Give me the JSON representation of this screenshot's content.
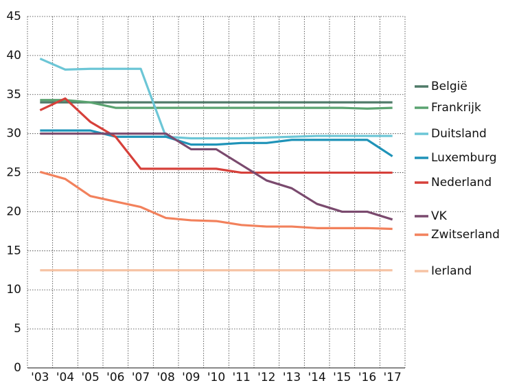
{
  "chart_data": {
    "type": "line",
    "categories": [
      "'03",
      "'04",
      "'05",
      "'06",
      "'07",
      "'08",
      "'09",
      "'10",
      "'11",
      "'12",
      "'13",
      "'14",
      "'15",
      "'16",
      "'17"
    ],
    "series": [
      {
        "name": "België",
        "color": "#4f7a68",
        "values": [
          34,
          34,
          34,
          34,
          34,
          34,
          34,
          34,
          34,
          34,
          34,
          34,
          34,
          34,
          34
        ]
      },
      {
        "name": "Frankrijk",
        "color": "#5aa370",
        "values": [
          34.3,
          34.3,
          34,
          33.3,
          33.3,
          33.3,
          33.3,
          33.3,
          33.3,
          33.3,
          33.3,
          33.3,
          33.3,
          33.2,
          33.3
        ]
      },
      {
        "name": "Duitsland",
        "color": "#6cc6d6",
        "values": [
          39.6,
          38.2,
          38.3,
          38.3,
          38.3,
          29.6,
          29.4,
          29.4,
          29.4,
          29.5,
          29.6,
          29.7,
          29.7,
          29.7,
          29.7
        ]
      },
      {
        "name": "Luxemburg",
        "color": "#1f93b8",
        "values": [
          30.4,
          30.4,
          30.4,
          29.6,
          29.6,
          29.6,
          28.6,
          28.6,
          28.8,
          28.8,
          29.2,
          29.2,
          29.2,
          29.2,
          27.1
        ]
      },
      {
        "name": "Nederland",
        "color": "#d6403a",
        "values": [
          33,
          34.5,
          31.5,
          29.6,
          25.5,
          25.5,
          25.5,
          25.5,
          25,
          25,
          25,
          25,
          25,
          25,
          25
        ]
      },
      {
        "name": "VK",
        "color": "#7a4a6e",
        "values": [
          30,
          30,
          30,
          30,
          30,
          30,
          28,
          28,
          26,
          24,
          23,
          21,
          20,
          20,
          19
        ]
      },
      {
        "name": "Zwitserland",
        "color": "#f2815c",
        "values": [
          25.1,
          24.2,
          22,
          21.3,
          20.6,
          19.2,
          18.9,
          18.8,
          18.3,
          18.1,
          18.1,
          17.9,
          17.9,
          17.9,
          17.8
        ]
      },
      {
        "name": "Ierland",
        "color": "#f6c3a4",
        "values": [
          12.5,
          12.5,
          12.5,
          12.5,
          12.5,
          12.5,
          12.5,
          12.5,
          12.5,
          12.5,
          12.5,
          12.5,
          12.5,
          12.5,
          12.5
        ]
      }
    ],
    "ylim": [
      0,
      45
    ],
    "yticks": [
      0,
      5,
      10,
      15,
      20,
      25,
      30,
      35,
      40,
      45
    ],
    "grid": true
  }
}
